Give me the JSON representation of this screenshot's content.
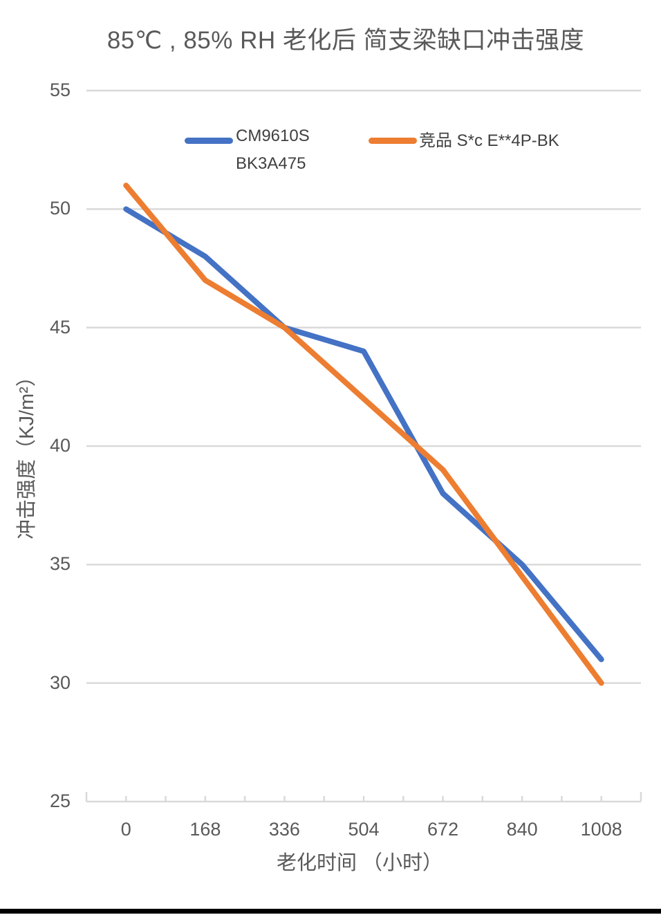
{
  "title": "85℃ , 85% RH  老化后 简支梁缺口冲击强度",
  "legend": {
    "series1_label_line1": "CM9610S",
    "series1_label_line2": "BK3A475",
    "series2_label": "竞品 S*c  E**4P-BK"
  },
  "x_axis": {
    "title": "老化时间 （小时）",
    "tick_labels": [
      "0",
      "168",
      "336",
      "504",
      "672",
      "840",
      "1008"
    ]
  },
  "y_axis": {
    "title": "冲击强度（KJ/m²）",
    "tick_labels": [
      "55",
      "50",
      "45",
      "40",
      "35",
      "30",
      "25"
    ]
  },
  "chart_data": {
    "type": "line",
    "title": "85℃ , 85% RH  老化后 简支梁缺口冲击强度",
    "xlabel": "老化时间 （小时）",
    "ylabel": "冲击强度（KJ/m²）",
    "x": [
      0,
      168,
      336,
      504,
      672,
      840,
      1008
    ],
    "series": [
      {
        "name": "CM9610S BK3A475",
        "color": "#4472C4",
        "values": [
          50,
          48,
          45,
          44,
          38,
          35,
          31
        ]
      },
      {
        "name": "竞品 S*c  E**4P-BK",
        "color": "#ED7D31",
        "values": [
          51,
          47,
          45,
          42,
          39,
          34.5,
          30
        ]
      }
    ],
    "ylim": [
      25,
      55
    ],
    "y_tick_step": 5,
    "grid": true,
    "legend_position": "top-center"
  },
  "colors": {
    "series1": "#4472C4",
    "series2": "#ED7D31",
    "gridline": "#D9D9D9",
    "axis_line": "#D9D9D9",
    "text": "#595959",
    "legend_text": "#404040",
    "bottom_bar": "#000000"
  }
}
